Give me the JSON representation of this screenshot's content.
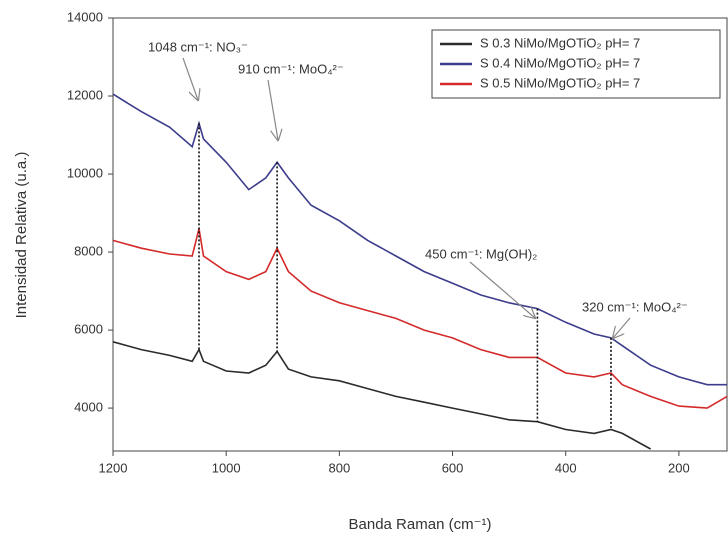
{
  "chart_data": {
    "type": "line",
    "xlabel": "Banda Raman (cm⁻¹)",
    "ylabel": "Intensidad Relativa (u.a.)",
    "x": [
      1200,
      1150,
      1100,
      1060,
      1048,
      1040,
      1000,
      960,
      930,
      910,
      890,
      850,
      800,
      750,
      700,
      650,
      600,
      550,
      500,
      450,
      400,
      350,
      320,
      300,
      250,
      200,
      150,
      115
    ],
    "series": [
      {
        "name": "S 0.3 NiMo/MgOTiO₂ pH= 7",
        "color": "#2b2b2b",
        "values": [
          5700,
          5500,
          5350,
          5200,
          5500,
          5200,
          4950,
          4900,
          5100,
          5450,
          5000,
          4800,
          4700,
          4500,
          4300,
          4150,
          4000,
          3850,
          3700,
          3650,
          3450,
          3350,
          3450,
          3350,
          2950,
          null,
          null,
          null
        ]
      },
      {
        "name": "S 0.4 NiMo/MgOTiO₂ pH= 7",
        "color": "#3c3c8c",
        "values": [
          12050,
          11600,
          11200,
          10700,
          11300,
          10900,
          10300,
          9600,
          9900,
          10300,
          9900,
          9200,
          8800,
          8300,
          7900,
          7500,
          7200,
          6900,
          6700,
          6550,
          6200,
          5900,
          5800,
          5600,
          5100,
          4800,
          4600,
          4600
        ]
      },
      {
        "name": "S 0.5 NiMo/MgOTiO₂ pH= 7",
        "color": "#d42a2a",
        "values": [
          8300,
          8100,
          7950,
          7900,
          8600,
          7900,
          7500,
          7300,
          7500,
          8100,
          7500,
          7000,
          6700,
          6500,
          6300,
          6000,
          5800,
          5500,
          5300,
          5300,
          4900,
          4800,
          4900,
          4600,
          4300,
          4050,
          4000,
          4300
        ]
      }
    ],
    "annotations": [
      {
        "text": "1048 cm⁻¹: NO₃⁻",
        "x": 1048
      },
      {
        "text": "910 cm⁻¹: MoO₄²⁻",
        "x": 910
      },
      {
        "text": "450 cm⁻¹:  Mg(OH)₂",
        "x": 450
      },
      {
        "text": "320 cm⁻¹: MoO₄²⁻",
        "x": 320
      }
    ],
    "xlim": [
      1200,
      115
    ],
    "xticks": [
      1200,
      1000,
      800,
      600,
      400,
      200
    ],
    "ylim": [
      2900,
      14000
    ],
    "yticks": [
      4000,
      6000,
      8000,
      10000,
      12000,
      14000
    ],
    "legend": "upper right"
  }
}
